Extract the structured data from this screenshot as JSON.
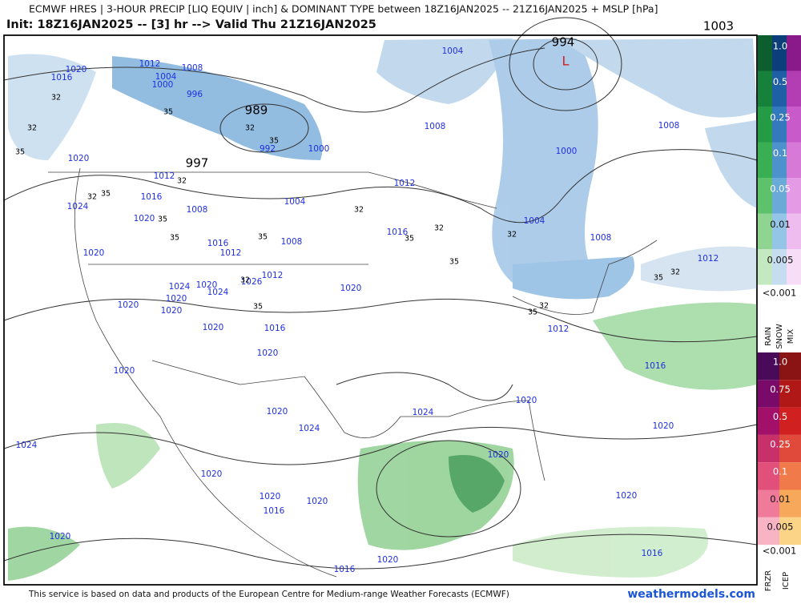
{
  "header": {
    "title": "ECMWF HRES | 3-HOUR PRECIP [LIQ EQUIV | inch] & DOMINANT TYPE between 18Z16JAN2025 -- 21Z16JAN2025 + MSLP [hPa]",
    "subtitle": "Init: 18Z16JAN2025 -- [3] hr --> Valid Thu 21Z16JAN2025"
  },
  "map": {
    "pressure_centers": [
      "994",
      "989",
      "997",
      "1003"
    ],
    "low_marker": "L",
    "isobar_labels": [
      "1004",
      "1020",
      "1016",
      "1012",
      "1008",
      "1004",
      "1000",
      "996",
      "1008",
      "1008",
      "1000",
      "1000",
      "992",
      "1020",
      "1012",
      "1012",
      "1016",
      "1024",
      "1004",
      "1008",
      "1020",
      "1016",
      "1004",
      "1008",
      "1008",
      "1016",
      "1012",
      "1020",
      "1012",
      "1012",
      "1020",
      "1026",
      "1024",
      "1024",
      "1020",
      "1020",
      "1020",
      "1020",
      "1016",
      "1012",
      "1020",
      "1020",
      "1016",
      "1020",
      "1020",
      "1020",
      "1024",
      "1020",
      "1024",
      "1024",
      "1020",
      "1020",
      "1020",
      "1020",
      "1016",
      "1020",
      "1020",
      "1020",
      "1016",
      "1016"
    ],
    "thickness_labels": [
      "32",
      "35",
      "32",
      "35",
      "32",
      "35",
      "32",
      "35",
      "32",
      "35",
      "32",
      "32",
      "35",
      "35",
      "35",
      "32",
      "32",
      "35",
      "32",
      "35",
      "35",
      "32",
      "35"
    ]
  },
  "legend": {
    "precip": {
      "levels": [
        "1.0",
        "0.5",
        "0.25",
        "0.1",
        "0.05",
        "0.01",
        "0.005"
      ],
      "below": "<0.001",
      "types": [
        "RAIN",
        "SNOW",
        "MIX"
      ]
    },
    "ice": {
      "levels": [
        "1.0",
        "0.75",
        "0.5",
        "0.25",
        "0.1",
        "0.01",
        "0.005"
      ],
      "below": "<0.001",
      "types": [
        "FRZR",
        "ICEP"
      ]
    }
  },
  "footer": {
    "credit": "This service is based on data and products of the European Centre for Medium-range Weather Forecasts (ECMWF)",
    "site": "weathermodels.com"
  }
}
